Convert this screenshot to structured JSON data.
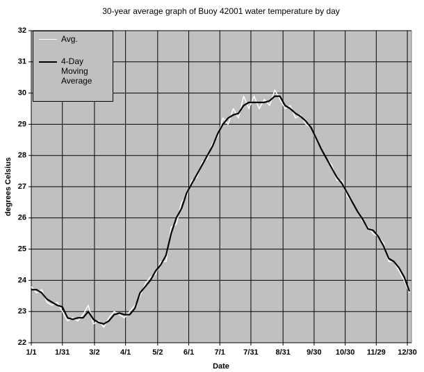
{
  "chart_data": {
    "type": "line",
    "title": "30-year average graph of Buoy 42001 water temperature by day",
    "x_label": "Date",
    "y_label": "degrees Celsius",
    "x": [
      1,
      6,
      11,
      16,
      21,
      26,
      31,
      36,
      41,
      46,
      51,
      56,
      61,
      66,
      71,
      76,
      81,
      86,
      91,
      96,
      101,
      106,
      111,
      116,
      121,
      126,
      131,
      136,
      141,
      146,
      151,
      156,
      161,
      166,
      171,
      176,
      181,
      186,
      191,
      196,
      201,
      206,
      211,
      216,
      221,
      226,
      231,
      236,
      241,
      246,
      251,
      256,
      261,
      266,
      271,
      276,
      281,
      286,
      291,
      296,
      301,
      306,
      311,
      316,
      321,
      326,
      331,
      336,
      341,
      346,
      351,
      356,
      361,
      366
    ],
    "series": [
      {
        "name": "Avg.",
        "color": "#ffffff",
        "values": [
          23.8,
          23.6,
          23.7,
          23.3,
          23.2,
          23.3,
          23.0,
          22.7,
          22.8,
          22.7,
          22.9,
          23.2,
          22.6,
          22.7,
          22.5,
          22.8,
          23.0,
          22.9,
          22.8,
          23.0,
          23.2,
          23.5,
          23.9,
          24.1,
          24.2,
          24.6,
          24.6,
          25.7,
          25.8,
          26.5,
          26.7,
          27.2,
          27.3,
          27.8,
          27.9,
          28.4,
          28.6,
          29.2,
          29.0,
          29.5,
          29.2,
          29.9,
          29.5,
          29.9,
          29.5,
          29.8,
          29.6,
          30.1,
          29.8,
          29.5,
          29.6,
          29.2,
          29.3,
          29.0,
          28.9,
          28.5,
          28.2,
          27.9,
          27.7,
          27.2,
          27.2,
          26.7,
          26.5,
          26.2,
          25.9,
          25.7,
          25.5,
          25.4,
          25.2,
          24.6,
          24.6,
          24.3,
          24.0,
          23.6
        ]
      },
      {
        "name": "4-Day Moving Average",
        "color": "#000000",
        "values": [
          23.7,
          23.7,
          23.6,
          23.4,
          23.3,
          23.2,
          23.15,
          22.8,
          22.75,
          22.8,
          22.8,
          23.0,
          22.75,
          22.65,
          22.6,
          22.7,
          22.9,
          22.95,
          22.9,
          22.9,
          23.1,
          23.6,
          23.8,
          24.0,
          24.3,
          24.5,
          24.8,
          25.5,
          26.0,
          26.3,
          26.8,
          27.1,
          27.4,
          27.7,
          28.0,
          28.3,
          28.7,
          29.0,
          29.2,
          29.3,
          29.35,
          29.6,
          29.7,
          29.7,
          29.7,
          29.7,
          29.75,
          29.9,
          29.9,
          29.6,
          29.5,
          29.35,
          29.25,
          29.1,
          28.9,
          28.55,
          28.2,
          27.9,
          27.6,
          27.3,
          27.1,
          26.8,
          26.5,
          26.2,
          25.95,
          25.65,
          25.6,
          25.4,
          25.1,
          24.7,
          24.6,
          24.4,
          24.1,
          23.65
        ]
      }
    ],
    "xlim": [
      1,
      368
    ],
    "xticks": [
      {
        "value": 1,
        "label": "1/1"
      },
      {
        "value": 31,
        "label": "1/31"
      },
      {
        "value": 62,
        "label": "3/2"
      },
      {
        "value": 92,
        "label": "4/1"
      },
      {
        "value": 123,
        "label": "5/2"
      },
      {
        "value": 153,
        "label": "6/1"
      },
      {
        "value": 183,
        "label": "7/1"
      },
      {
        "value": 213,
        "label": "7/31"
      },
      {
        "value": 244,
        "label": "8/31"
      },
      {
        "value": 274,
        "label": "9/30"
      },
      {
        "value": 304,
        "label": "10/30"
      },
      {
        "value": 334,
        "label": "11/29"
      },
      {
        "value": 364,
        "label": "12/30"
      }
    ],
    "ylim": [
      22,
      32
    ],
    "yticks": [
      22,
      23,
      24,
      25,
      26,
      27,
      28,
      29,
      30,
      31,
      32
    ],
    "grid": true,
    "legend": "upper left"
  }
}
